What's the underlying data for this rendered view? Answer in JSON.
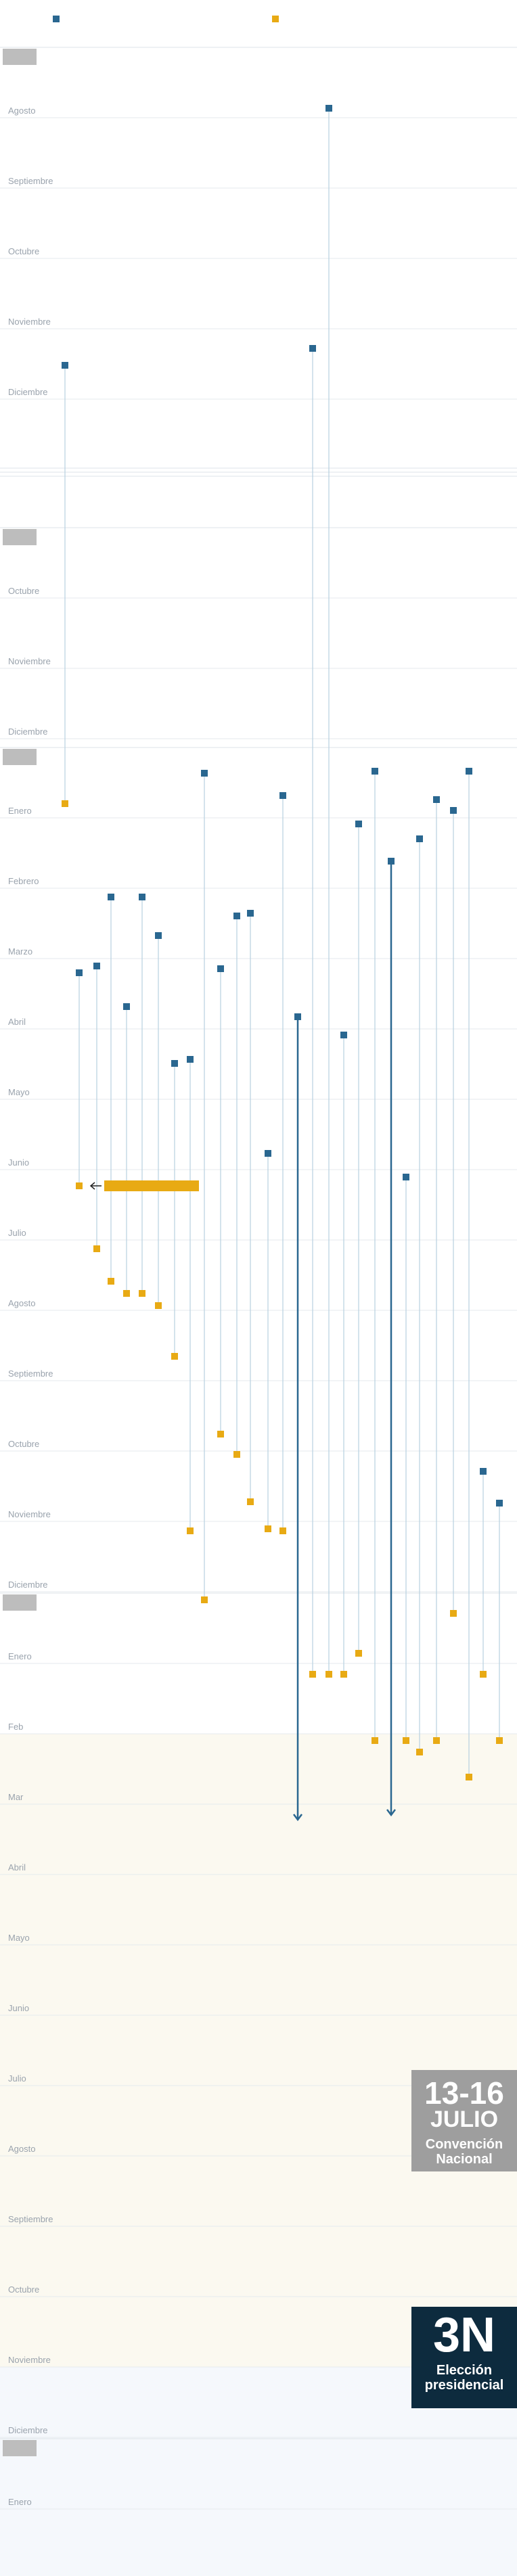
{
  "chart_data": {
    "type": "timeline",
    "title": "",
    "colors": {
      "start": "#2a6790",
      "end": "#e8aa14",
      "band_conv": "#fbf9f0",
      "band_elec": "#f5f8fc",
      "conv_box": "#9e9e9e",
      "elec_box": "#0d2b3e"
    },
    "years": [
      {
        "months": [
          "Agosto",
          "Septiembre",
          "Octubre",
          "Noviembre",
          "Diciembre"
        ]
      },
      {
        "months": [
          "Octubre",
          "Noviembre",
          "Diciembre"
        ]
      },
      {
        "months": [
          "Enero",
          "Febrero",
          "Marzo",
          "Abril",
          "Mayo",
          "Junio",
          "Julio",
          "Agosto",
          "Septiembre",
          "Octubre",
          "Noviembre",
          "Diciembre"
        ]
      },
      {
        "months": [
          "Enero",
          "Feb",
          "Mar",
          "Abril",
          "Mayo",
          "Junio",
          "Julio",
          "Agosto",
          "Septiembre",
          "Octubre",
          "Noviembre",
          "Diciembre"
        ]
      },
      {
        "months": [
          "Enero"
        ]
      }
    ],
    "events": [
      {
        "name": "convencion",
        "big": "13-16",
        "line2": "JULIO",
        "line3": "Convención",
        "line4": "Nacional"
      },
      {
        "name": "eleccion",
        "big": "3N",
        "line2": "Elección",
        "line3": "presidencial"
      }
    ]
  }
}
